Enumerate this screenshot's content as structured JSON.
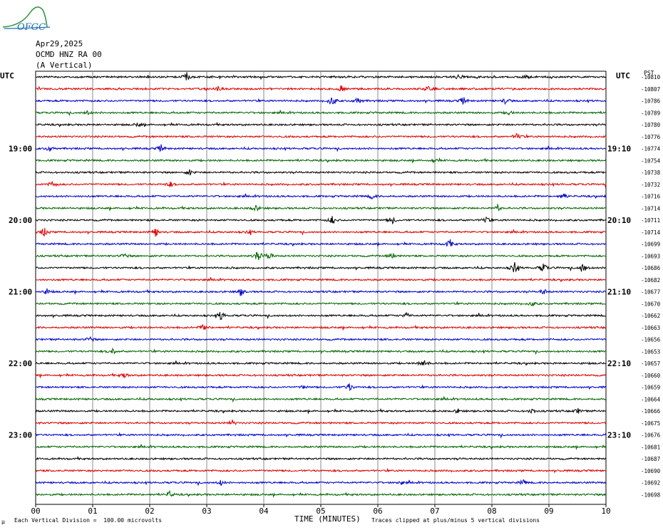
{
  "logo": {
    "text": "OFGC",
    "color": "#1f6fb5",
    "hill_color": "#2f8f3a"
  },
  "header": {
    "date": "Apr29,2025",
    "station": "OCMD HNZ RA 00",
    "component": "(A Vertical)"
  },
  "left_axis_title": "UTC",
  "right_axis_title": "UTC",
  "right_axis_unit": "PST",
  "footer": {
    "x_axis_title": "TIME (MINUTES)",
    "scale_note": "Each Vertical Division =  100.00 microvolts",
    "clip_note": "Traces clipped at plus/minus 5 vertical divisions",
    "corner_mark": "µ"
  },
  "chart_data": {
    "type": "line",
    "title": "",
    "xlabel": "TIME (MINUTES)",
    "xlim": [
      0,
      10
    ],
    "x_ticks": [
      "00",
      "01",
      "02",
      "03",
      "04",
      "05",
      "06",
      "07",
      "08",
      "09",
      "10"
    ],
    "grid": true,
    "trace_colors": [
      "#000000",
      "#dd0000",
      "#0000cc",
      "#006600"
    ],
    "left_time_labels": [
      {
        "row": 6,
        "label": "19:00"
      },
      {
        "row": 12,
        "label": "20:00"
      },
      {
        "row": 18,
        "label": "21:00"
      },
      {
        "row": 24,
        "label": "22:00"
      },
      {
        "row": 30,
        "label": "23:00"
      }
    ],
    "right_time_labels": [
      {
        "row": 6,
        "label": "19:10"
      },
      {
        "row": 12,
        "label": "20:10"
      },
      {
        "row": 18,
        "label": "21:10"
      },
      {
        "row": 24,
        "label": "22:10"
      },
      {
        "row": 30,
        "label": "23:10"
      }
    ],
    "trace_offsets": [
      "-10810",
      "-10807",
      "-10786",
      "-10789",
      "-10780",
      "-10776",
      "-10774",
      "-10754",
      "-10738",
      "-10732",
      "-10716",
      "-10714",
      "-10711",
      "-10714",
      "-10699",
      "-10693",
      "-10686",
      "-10682",
      "-10677",
      "-10670",
      "-10662",
      "-10663",
      "-10656",
      "-10653",
      "-10657",
      "-10660",
      "-10659",
      "-10664",
      "-10666",
      "-10675",
      "-10676",
      "-10681",
      "-10687",
      "-10690",
      "-10692",
      "-10698"
    ],
    "events": [
      {
        "row": 0,
        "minute": 2.65,
        "amp": 6
      },
      {
        "row": 0,
        "minute": 7.4,
        "amp": 3
      },
      {
        "row": 0,
        "minute": 8.6,
        "amp": 4
      },
      {
        "row": 1,
        "minute": 3.2,
        "amp": 3
      },
      {
        "row": 1,
        "minute": 5.35,
        "amp": 5
      },
      {
        "row": 1,
        "minute": 6.9,
        "amp": 7
      },
      {
        "row": 2,
        "minute": 5.2,
        "amp": 9
      },
      {
        "row": 2,
        "minute": 5.65,
        "amp": 5
      },
      {
        "row": 2,
        "minute": 7.5,
        "amp": 5
      },
      {
        "row": 2,
        "minute": 8.25,
        "amp": 5
      },
      {
        "row": 3,
        "minute": 0.9,
        "amp": 3
      },
      {
        "row": 3,
        "minute": 8.3,
        "amp": 3
      },
      {
        "row": 4,
        "minute": 1.8,
        "amp": 3
      },
      {
        "row": 5,
        "minute": 8.45,
        "amp": 6
      },
      {
        "row": 6,
        "minute": 2.2,
        "amp": 5
      },
      {
        "row": 6,
        "minute": 0.25,
        "amp": 4
      },
      {
        "row": 7,
        "minute": 7.0,
        "amp": 3
      },
      {
        "row": 8,
        "minute": 2.7,
        "amp": 4
      },
      {
        "row": 9,
        "minute": 0.3,
        "amp": 5
      },
      {
        "row": 9,
        "minute": 2.35,
        "amp": 4
      },
      {
        "row": 10,
        "minute": 5.9,
        "amp": 4
      },
      {
        "row": 10,
        "minute": 9.25,
        "amp": 5
      },
      {
        "row": 11,
        "minute": 3.85,
        "amp": 5
      },
      {
        "row": 11,
        "minute": 8.1,
        "amp": 4
      },
      {
        "row": 12,
        "minute": 5.2,
        "amp": 6
      },
      {
        "row": 12,
        "minute": 6.25,
        "amp": 6
      },
      {
        "row": 12,
        "minute": 7.9,
        "amp": 5
      },
      {
        "row": 13,
        "minute": 0.15,
        "amp": 7
      },
      {
        "row": 13,
        "minute": 2.1,
        "amp": 7
      },
      {
        "row": 13,
        "minute": 3.75,
        "amp": 3
      },
      {
        "row": 14,
        "minute": 7.25,
        "amp": 7
      },
      {
        "row": 15,
        "minute": 3.9,
        "amp": 9
      },
      {
        "row": 15,
        "minute": 4.1,
        "amp": 7
      },
      {
        "row": 15,
        "minute": 6.25,
        "amp": 5
      },
      {
        "row": 15,
        "minute": 1.55,
        "amp": 4
      },
      {
        "row": 16,
        "minute": 8.4,
        "amp": 9
      },
      {
        "row": 16,
        "minute": 8.9,
        "amp": 7
      },
      {
        "row": 16,
        "minute": 9.6,
        "amp": 9
      },
      {
        "row": 18,
        "minute": 3.6,
        "amp": 6
      },
      {
        "row": 18,
        "minute": 0.2,
        "amp": 4
      },
      {
        "row": 18,
        "minute": 8.9,
        "amp": 5
      },
      {
        "row": 19,
        "minute": 8.7,
        "amp": 4
      },
      {
        "row": 20,
        "minute": 3.25,
        "amp": 7
      },
      {
        "row": 20,
        "minute": 6.5,
        "amp": 4
      },
      {
        "row": 21,
        "minute": 2.95,
        "amp": 5
      },
      {
        "row": 22,
        "minute": 0.95,
        "amp": 4
      },
      {
        "row": 23,
        "minute": 1.35,
        "amp": 5
      },
      {
        "row": 24,
        "minute": 6.8,
        "amp": 8
      },
      {
        "row": 25,
        "minute": 1.55,
        "amp": 4
      },
      {
        "row": 26,
        "minute": 5.5,
        "amp": 6
      },
      {
        "row": 26,
        "minute": 4.7,
        "amp": 3
      },
      {
        "row": 28,
        "minute": 8.7,
        "amp": 4
      },
      {
        "row": 28,
        "minute": 9.5,
        "amp": 4
      },
      {
        "row": 28,
        "minute": 7.4,
        "amp": 3
      },
      {
        "row": 29,
        "minute": 3.45,
        "amp": 4
      },
      {
        "row": 34,
        "minute": 3.25,
        "amp": 4
      },
      {
        "row": 34,
        "minute": 6.4,
        "amp": 3
      },
      {
        "row": 34,
        "minute": 8.55,
        "amp": 4
      },
      {
        "row": 35,
        "minute": 2.35,
        "amp": 4
      }
    ]
  }
}
